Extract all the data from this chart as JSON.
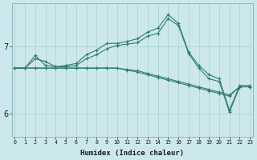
{
  "xlabel": "Humidex (Indice chaleur)",
  "bg_color": "#cce8ec",
  "line_color": "#2e7d6e",
  "grid_color": "#aacdd4",
  "x_ticks": [
    0,
    1,
    2,
    3,
    4,
    5,
    6,
    7,
    8,
    9,
    10,
    11,
    12,
    13,
    14,
    15,
    16,
    17,
    18,
    19,
    20,
    21,
    22,
    23
  ],
  "y_ticks": [
    6,
    7
  ],
  "ylim": [
    5.65,
    7.65
  ],
  "xlim": [
    -0.3,
    23.3
  ],
  "series": [
    [
      6.68,
      6.68,
      6.87,
      6.72,
      6.7,
      6.72,
      6.75,
      6.88,
      6.95,
      7.05,
      7.05,
      7.08,
      7.12,
      7.22,
      7.28,
      7.48,
      7.35,
      6.92,
      6.72,
      6.58,
      6.52,
      6.05,
      6.42,
      6.42
    ],
    [
      6.68,
      6.68,
      6.82,
      6.78,
      6.7,
      6.7,
      6.72,
      6.82,
      6.88,
      6.97,
      7.02,
      7.04,
      7.06,
      7.16,
      7.2,
      7.42,
      7.32,
      6.9,
      6.68,
      6.52,
      6.48,
      6.02,
      6.4,
      6.4
    ],
    [
      6.68,
      6.68,
      6.68,
      6.68,
      6.68,
      6.68,
      6.68,
      6.68,
      6.68,
      6.68,
      6.68,
      6.65,
      6.62,
      6.58,
      6.54,
      6.5,
      6.46,
      6.42,
      6.38,
      6.34,
      6.3,
      6.26,
      6.4,
      6.4
    ],
    [
      6.68,
      6.68,
      6.68,
      6.68,
      6.68,
      6.68,
      6.68,
      6.68,
      6.68,
      6.68,
      6.68,
      6.66,
      6.64,
      6.6,
      6.56,
      6.52,
      6.48,
      6.44,
      6.4,
      6.36,
      6.32,
      6.28,
      6.4,
      6.4
    ]
  ]
}
